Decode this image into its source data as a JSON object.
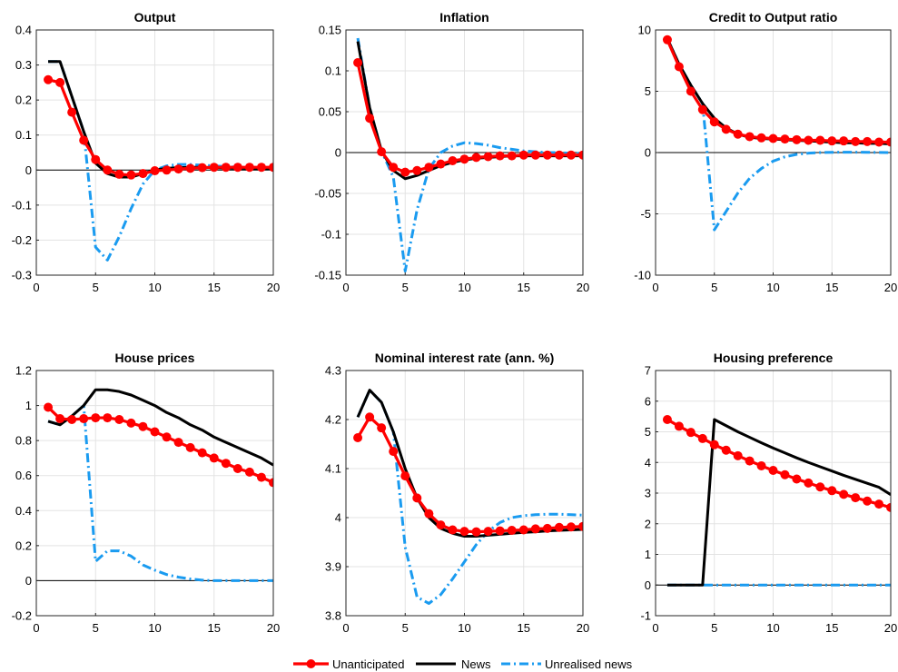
{
  "legend": {
    "items": [
      {
        "label": "Unanticipated",
        "color": "#ff0000",
        "style": "solid-dots"
      },
      {
        "label": "News",
        "color": "#000000",
        "style": "solid"
      },
      {
        "label": "Unrealised news",
        "color": "#1a9bf0",
        "style": "dash-dot"
      }
    ]
  },
  "chart_data": [
    {
      "type": "line",
      "title": "Output",
      "xlim": [
        0,
        20
      ],
      "ylim": [
        -0.3,
        0.4
      ],
      "xticks": [
        0,
        5,
        10,
        15,
        20
      ],
      "yticks": [
        -0.3,
        -0.2,
        -0.1,
        0,
        0.1,
        0.2,
        0.3,
        0.4
      ],
      "yticklabels": [
        "-0.3",
        "-0.2",
        "-0.1",
        "0",
        "0.1",
        "0.2",
        "0.3",
        "0.4"
      ],
      "zero_line": 0,
      "x": [
        1,
        2,
        3,
        4,
        5,
        6,
        7,
        8,
        9,
        10,
        11,
        12,
        13,
        14,
        15,
        16,
        17,
        18,
        19,
        20
      ],
      "series": [
        {
          "name": "Unanticipated",
          "values": [
            0.258,
            0.25,
            0.165,
            0.085,
            0.03,
            0.0,
            -0.012,
            -0.014,
            -0.01,
            -0.002,
            0.0,
            0.003,
            0.005,
            0.007,
            0.008,
            0.008,
            0.008,
            0.008,
            0.008,
            0.008
          ]
        },
        {
          "name": "News",
          "values": [
            0.31,
            0.31,
            0.21,
            0.11,
            0.02,
            -0.01,
            -0.02,
            -0.02,
            -0.01,
            0.0,
            0.005,
            0.007,
            0.008,
            0.008,
            0.007,
            0.006,
            0.005,
            0.005,
            0.004,
            0.004
          ]
        },
        {
          "name": "Unrealised news",
          "values": [
            0.31,
            0.31,
            0.21,
            0.11,
            -0.22,
            -0.257,
            -0.19,
            -0.11,
            -0.04,
            0.0,
            0.012,
            0.016,
            0.016,
            0.014,
            0.012,
            0.01,
            0.008,
            0.006,
            0.005,
            0.004
          ]
        }
      ]
    },
    {
      "type": "line",
      "title": "Inflation",
      "xlim": [
        0,
        20
      ],
      "ylim": [
        -0.15,
        0.15
      ],
      "xticks": [
        0,
        5,
        10,
        15,
        20
      ],
      "yticks": [
        -0.15,
        -0.1,
        -0.05,
        0,
        0.05,
        0.1,
        0.15
      ],
      "yticklabels": [
        "-0.15",
        "-0.1",
        "-0.05",
        "0",
        "0.05",
        "0.1",
        "0.15"
      ],
      "zero_line": 0,
      "x": [
        1,
        2,
        3,
        4,
        5,
        6,
        7,
        8,
        9,
        10,
        11,
        12,
        13,
        14,
        15,
        16,
        17,
        18,
        19,
        20
      ],
      "series": [
        {
          "name": "Unanticipated",
          "values": [
            0.11,
            0.042,
            0.001,
            -0.018,
            -0.024,
            -0.022,
            -0.018,
            -0.014,
            -0.01,
            -0.008,
            -0.006,
            -0.005,
            -0.004,
            -0.004,
            -0.003,
            -0.003,
            -0.003,
            -0.003,
            -0.003,
            -0.003
          ]
        },
        {
          "name": "News",
          "values": [
            0.136,
            0.055,
            0.002,
            -0.022,
            -0.032,
            -0.028,
            -0.022,
            -0.016,
            -0.012,
            -0.009,
            -0.007,
            -0.006,
            -0.005,
            -0.004,
            -0.004,
            -0.004,
            -0.004,
            -0.004,
            -0.004,
            -0.004
          ]
        },
        {
          "name": "Unrealised news",
          "values": [
            0.14,
            0.055,
            0.002,
            -0.03,
            -0.145,
            -0.07,
            -0.02,
            0.0,
            0.008,
            0.012,
            0.011,
            0.009,
            0.006,
            0.004,
            0.002,
            0.001,
            0.0,
            0.0,
            -0.001,
            -0.001
          ]
        }
      ]
    },
    {
      "type": "line",
      "title": "Credit to Output ratio",
      "xlim": [
        0,
        20
      ],
      "ylim": [
        -10,
        10
      ],
      "xticks": [
        0,
        5,
        10,
        15,
        20
      ],
      "yticks": [
        -10,
        -5,
        0,
        5,
        10
      ],
      "yticklabels": [
        "-10",
        "-5",
        "0",
        "5",
        "10"
      ],
      "zero_line": 0,
      "x": [
        1,
        2,
        3,
        4,
        5,
        6,
        7,
        8,
        9,
        10,
        11,
        12,
        13,
        14,
        15,
        16,
        17,
        18,
        19,
        20
      ],
      "series": [
        {
          "name": "Unanticipated",
          "values": [
            9.2,
            7.0,
            5.0,
            3.5,
            2.5,
            1.9,
            1.5,
            1.3,
            1.2,
            1.15,
            1.1,
            1.05,
            1.0,
            1.0,
            0.95,
            0.95,
            0.9,
            0.9,
            0.85,
            0.85
          ]
        },
        {
          "name": "News",
          "values": [
            9.3,
            7.2,
            5.5,
            4.0,
            2.8,
            2.0,
            1.5,
            1.25,
            1.15,
            1.1,
            1.05,
            1.0,
            0.95,
            0.9,
            0.85,
            0.8,
            0.8,
            0.75,
            0.75,
            0.7
          ]
        },
        {
          "name": "Unrealised news",
          "values": [
            9.3,
            7.2,
            5.5,
            4.0,
            -6.3,
            -4.8,
            -3.3,
            -2.1,
            -1.3,
            -0.7,
            -0.35,
            -0.15,
            -0.05,
            0.0,
            0.02,
            0.03,
            0.03,
            0.02,
            0.01,
            0.0
          ]
        }
      ]
    },
    {
      "type": "line",
      "title": "House prices",
      "xlim": [
        0,
        20
      ],
      "ylim": [
        -0.2,
        1.2
      ],
      "xticks": [
        0,
        5,
        10,
        15,
        20
      ],
      "yticks": [
        -0.2,
        0,
        0.2,
        0.4,
        0.6,
        0.8,
        1,
        1.2
      ],
      "yticklabels": [
        "-0.2",
        "0",
        "0.2",
        "0.4",
        "0.6",
        "0.8",
        "1",
        "1.2"
      ],
      "zero_line": 0,
      "x": [
        1,
        2,
        3,
        4,
        5,
        6,
        7,
        8,
        9,
        10,
        11,
        12,
        13,
        14,
        15,
        16,
        17,
        18,
        19,
        20
      ],
      "series": [
        {
          "name": "Unanticipated",
          "values": [
            0.99,
            0.925,
            0.92,
            0.925,
            0.93,
            0.93,
            0.92,
            0.9,
            0.88,
            0.85,
            0.82,
            0.79,
            0.76,
            0.73,
            0.7,
            0.67,
            0.64,
            0.62,
            0.59,
            0.56
          ]
        },
        {
          "name": "News",
          "values": [
            0.91,
            0.89,
            0.94,
            1.0,
            1.09,
            1.09,
            1.08,
            1.06,
            1.03,
            1.0,
            0.96,
            0.93,
            0.89,
            0.86,
            0.82,
            0.79,
            0.76,
            0.73,
            0.7,
            0.66
          ]
        },
        {
          "name": "Unrealised news",
          "values": [
            0.91,
            0.89,
            0.94,
            1.0,
            0.11,
            0.17,
            0.17,
            0.14,
            0.09,
            0.06,
            0.035,
            0.02,
            0.01,
            0.003,
            0.0,
            0.0,
            0.0,
            0.0,
            0.0,
            0.0
          ]
        }
      ]
    },
    {
      "type": "line",
      "title": "Nominal interest rate (ann. %)",
      "xlim": [
        0,
        20
      ],
      "ylim": [
        3.8,
        4.3
      ],
      "xticks": [
        0,
        5,
        10,
        15,
        20
      ],
      "yticks": [
        3.8,
        3.9,
        4.0,
        4.1,
        4.2,
        4.3
      ],
      "yticklabels": [
        "3.8",
        "3.9",
        "4",
        "4.1",
        "4.2",
        "4.3"
      ],
      "x": [
        1,
        2,
        3,
        4,
        5,
        6,
        7,
        8,
        9,
        10,
        11,
        12,
        13,
        14,
        15,
        16,
        17,
        18,
        19,
        20
      ],
      "series": [
        {
          "name": "Unanticipated",
          "values": [
            4.163,
            4.205,
            4.183,
            4.135,
            4.085,
            4.04,
            4.008,
            3.985,
            3.975,
            3.972,
            3.971,
            3.972,
            3.973,
            3.974,
            3.975,
            3.977,
            3.978,
            3.98,
            3.981,
            3.982
          ]
        },
        {
          "name": "News",
          "values": [
            4.205,
            4.26,
            4.235,
            4.175,
            4.1,
            4.04,
            4.0,
            3.978,
            3.968,
            3.962,
            3.962,
            3.964,
            3.966,
            3.968,
            3.97,
            3.971,
            3.973,
            3.974,
            3.975,
            3.976
          ]
        },
        {
          "name": "Unrealised news",
          "values": [
            4.205,
            4.26,
            4.235,
            4.175,
            3.94,
            3.838,
            3.825,
            3.843,
            3.875,
            3.91,
            3.945,
            3.972,
            3.99,
            4.0,
            4.004,
            4.006,
            4.007,
            4.007,
            4.006,
            4.005
          ]
        }
      ]
    },
    {
      "type": "line",
      "title": "Housing preference",
      "xlim": [
        0,
        20
      ],
      "ylim": [
        -1,
        7
      ],
      "xticks": [
        0,
        5,
        10,
        15,
        20
      ],
      "yticks": [
        -1,
        0,
        1,
        2,
        3,
        4,
        5,
        6,
        7
      ],
      "yticklabels": [
        "-1",
        "0",
        "1",
        "2",
        "3",
        "4",
        "5",
        "6",
        "7"
      ],
      "zero_line": 0,
      "x": [
        1,
        2,
        3,
        4,
        5,
        6,
        7,
        8,
        9,
        10,
        11,
        12,
        13,
        14,
        15,
        16,
        17,
        18,
        19,
        20
      ],
      "series": [
        {
          "name": "Unanticipated",
          "values": [
            5.4,
            5.18,
            4.98,
            4.78,
            4.58,
            4.4,
            4.22,
            4.05,
            3.89,
            3.74,
            3.6,
            3.46,
            3.33,
            3.2,
            3.08,
            2.96,
            2.85,
            2.74,
            2.64,
            2.53
          ]
        },
        {
          "name": "News",
          "values": [
            0,
            0,
            0,
            0,
            5.4,
            5.2,
            5.0,
            4.82,
            4.64,
            4.47,
            4.31,
            4.15,
            4.0,
            3.86,
            3.72,
            3.58,
            3.45,
            3.32,
            3.19,
            2.95
          ]
        },
        {
          "name": "Unrealised news",
          "values": [
            0,
            0,
            0,
            0,
            0,
            0,
            0,
            0,
            0,
            0,
            0,
            0,
            0,
            0,
            0,
            0,
            0,
            0,
            0,
            0
          ]
        }
      ]
    }
  ]
}
